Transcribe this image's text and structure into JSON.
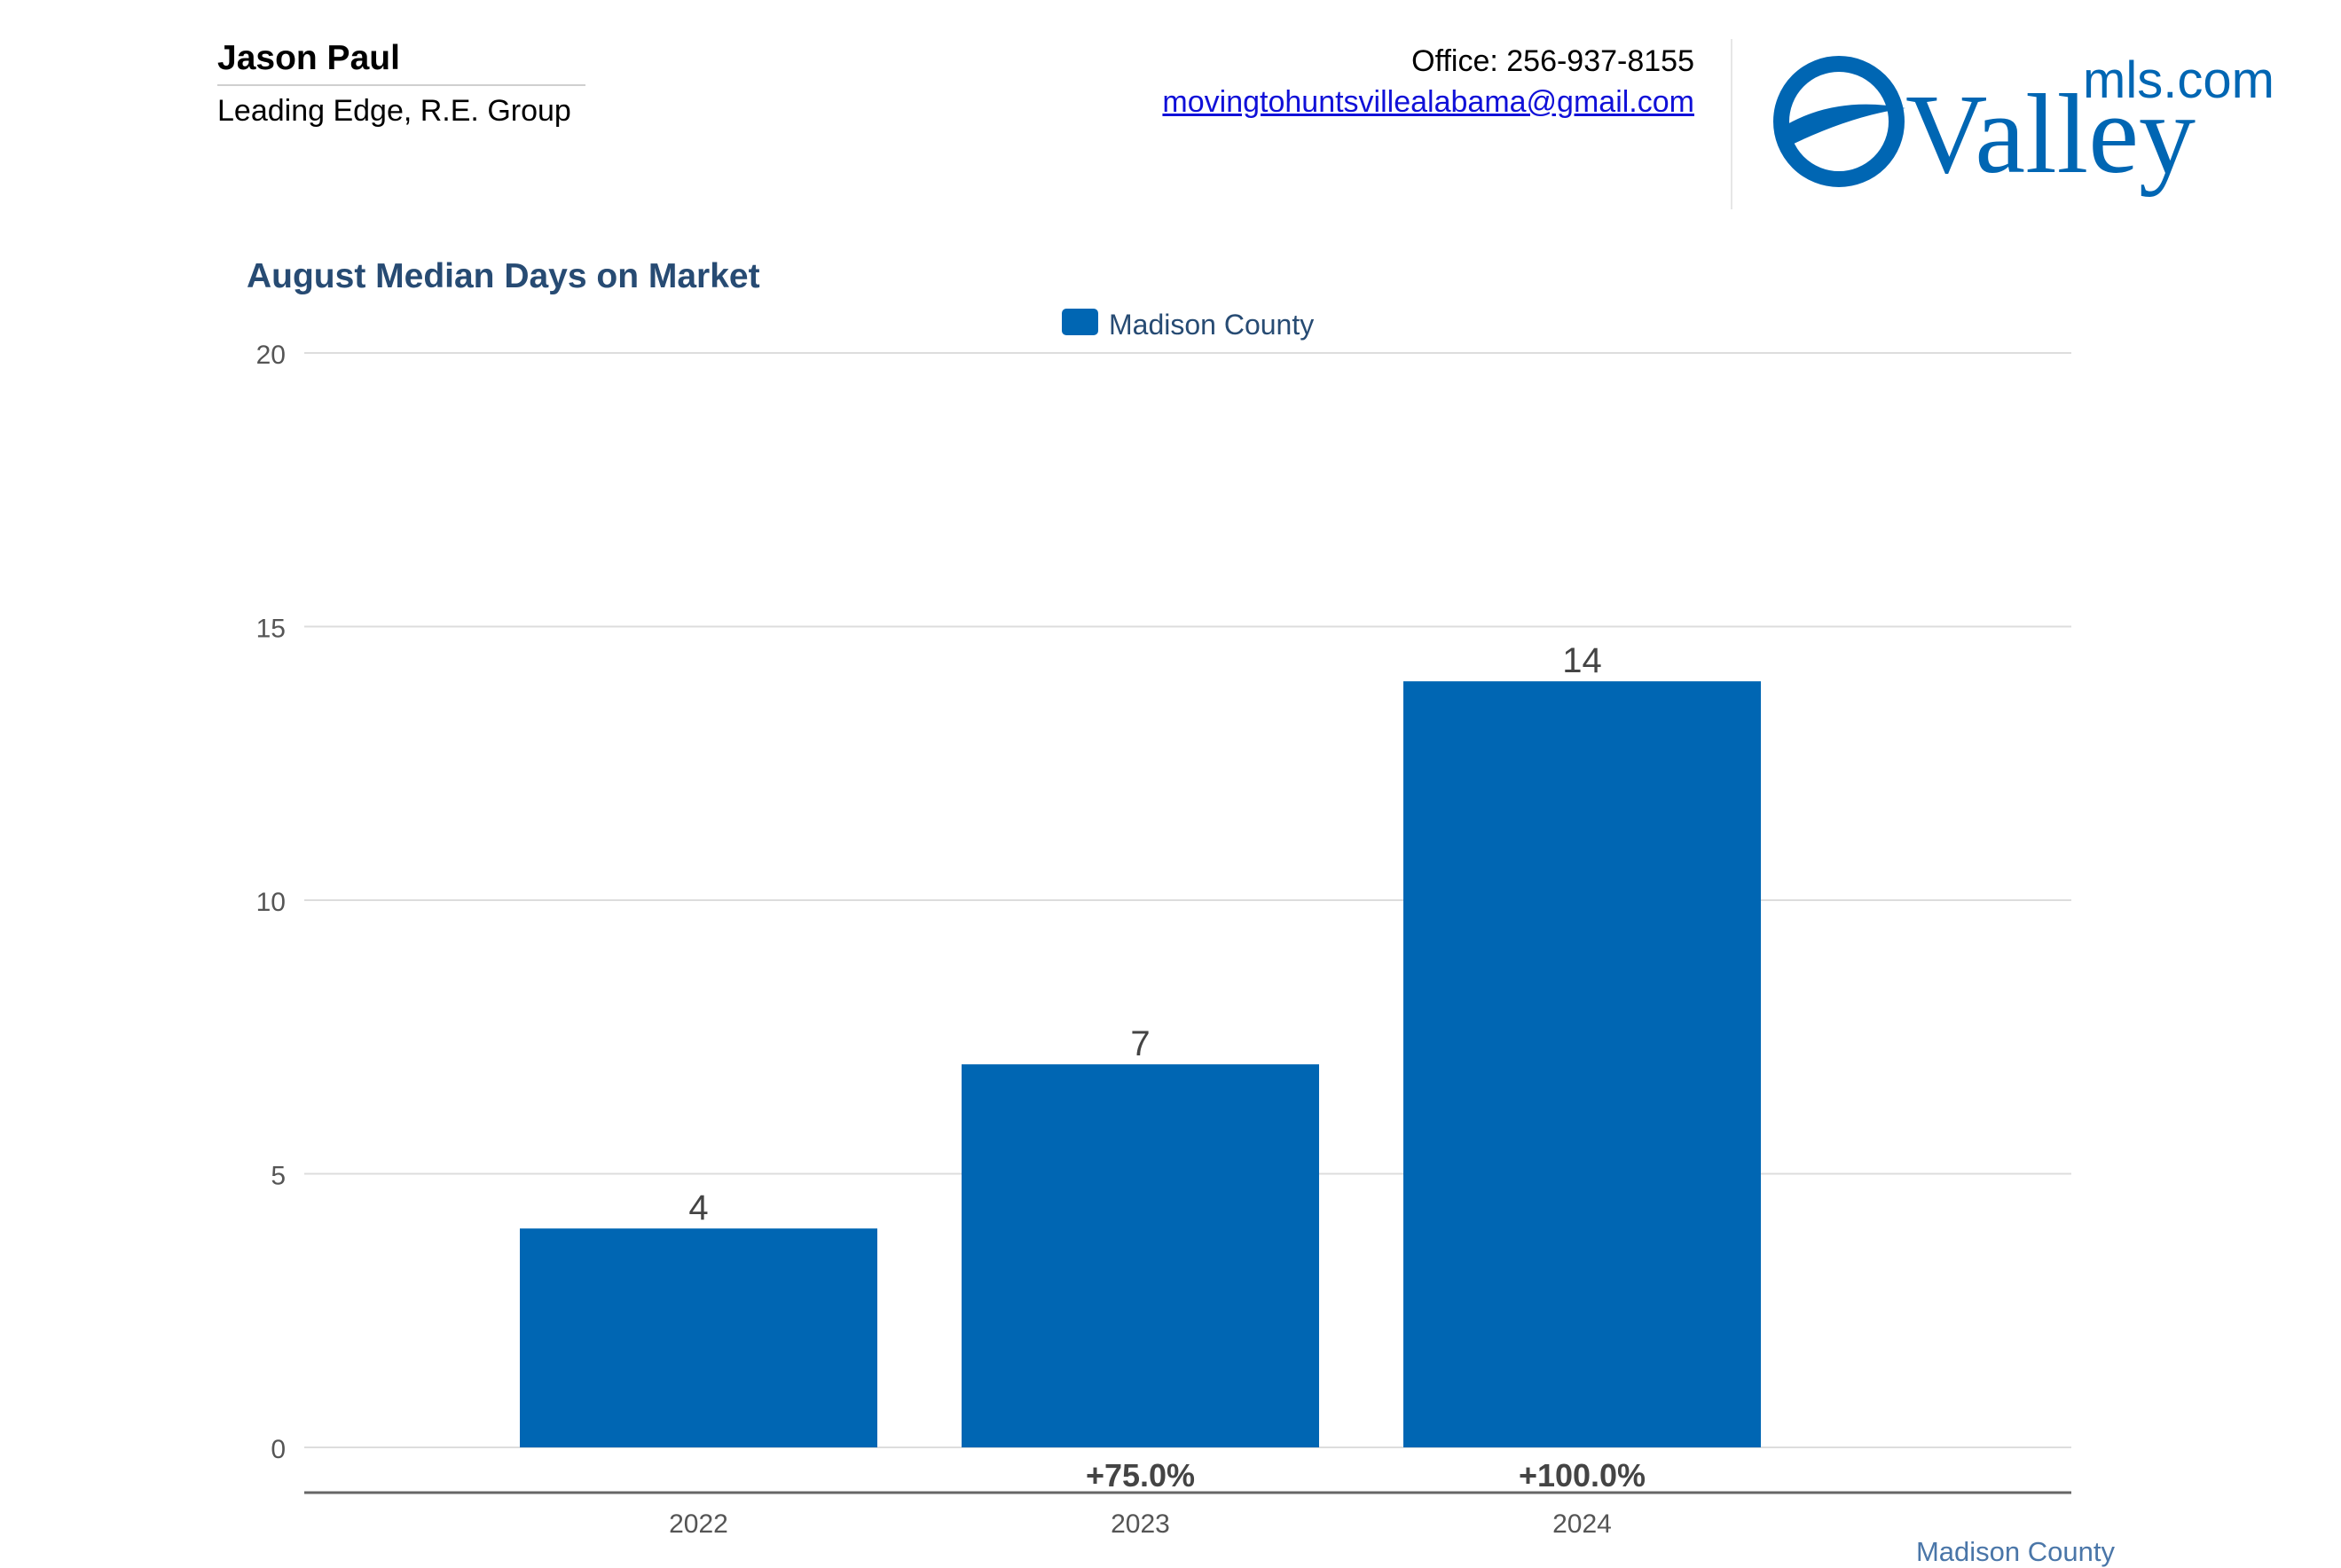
{
  "header": {
    "agent_name": "Jason Paul",
    "agent_company": "Leading Edge, R.E. Group",
    "office_phone": "Office: 256-937-8155",
    "email": "movingtohuntsvillealabama@gmail.com",
    "logo": {
      "word": "Valley",
      "suffix": "mls.com",
      "icon": "valleymls-logo-icon",
      "color": "#0066b3"
    }
  },
  "colors": {
    "bar": "#0066b3",
    "title": "#274b73",
    "grid": "#dddddd",
    "axis": "#666666",
    "tick_text": "#555555",
    "label_text": "#444444",
    "footer": "#4a76a8"
  },
  "chart_data": {
    "type": "bar",
    "title": "August Median Days on Market",
    "categories": [
      "2022",
      "2023",
      "2024"
    ],
    "series": [
      {
        "name": "Madison County",
        "values": [
          4,
          7,
          14
        ]
      }
    ],
    "value_labels": [
      "4",
      "7",
      "14"
    ],
    "change_labels": [
      "",
      "+75.0%",
      "+100.0%"
    ],
    "ylim": [
      0,
      20
    ],
    "yticks": [
      0,
      5,
      10,
      15,
      20
    ],
    "grid": true,
    "legend_position": "top-center"
  },
  "footer": {
    "label": "Madison County"
  }
}
